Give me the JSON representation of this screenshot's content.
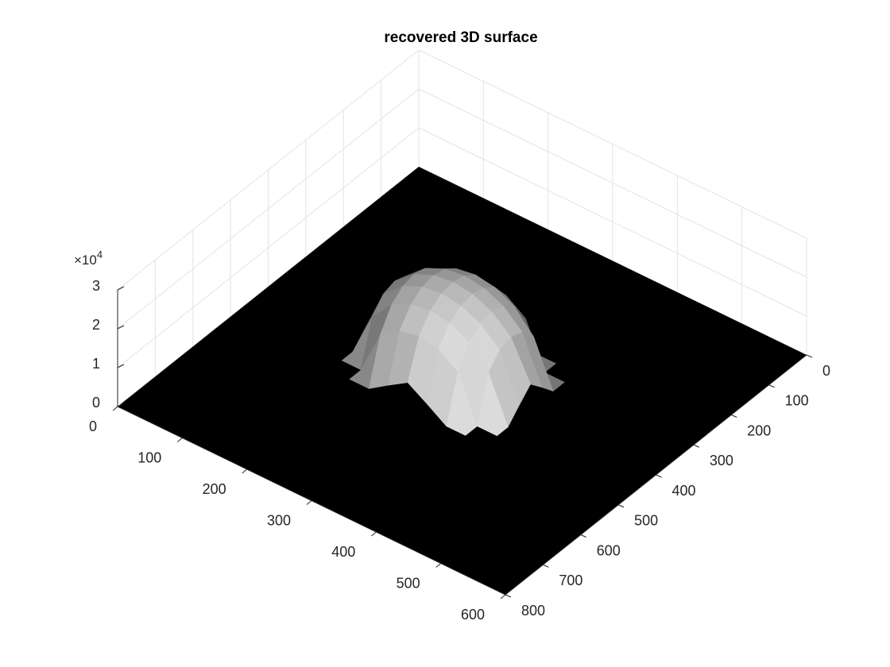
{
  "chart_data": {
    "type": "surface3d",
    "title": "recovered 3D surface",
    "xlim": [
      0,
      600
    ],
    "xticks": [
      0,
      100,
      200,
      300,
      400,
      500,
      600
    ],
    "ylim": [
      0,
      800
    ],
    "yticks": [
      0,
      100,
      200,
      300,
      400,
      500,
      600,
      700,
      800
    ],
    "zlim": [
      0,
      30000
    ],
    "zticks": [
      0,
      {
        "value": 10000,
        "label": "1"
      },
      {
        "value": 20000,
        "label": "2"
      },
      {
        "value": 30000,
        "label": "3"
      }
    ],
    "z_multiplier": {
      "base": "×10",
      "exponent": "4"
    },
    "grid": true,
    "floor_color": "#000000",
    "x": [
      160,
      190,
      220,
      250,
      280,
      310,
      340,
      370,
      400
    ],
    "y": [
      270,
      300,
      330,
      360,
      390,
      420,
      450,
      480,
      510
    ],
    "z": [
      [
        0,
        0,
        0,
        3300,
        6400,
        3300,
        0,
        0,
        0
      ],
      [
        0,
        0,
        11500,
        15000,
        16000,
        15000,
        11500,
        0,
        0
      ],
      [
        0,
        11500,
        16900,
        19400,
        20200,
        19400,
        16900,
        11500,
        0
      ],
      [
        3300,
        15000,
        19400,
        21600,
        22300,
        21600,
        19400,
        15000,
        3300
      ],
      [
        6400,
        16000,
        20200,
        22300,
        23000,
        22300,
        20200,
        16000,
        6400
      ],
      [
        3300,
        15000,
        19400,
        21600,
        22300,
        21600,
        19400,
        15000,
        3300
      ],
      [
        0,
        11500,
        16900,
        19400,
        20200,
        19400,
        16900,
        11500,
        0
      ],
      [
        0,
        0,
        11500,
        15000,
        16000,
        15000,
        11500,
        0,
        0
      ],
      [
        0,
        0,
        0,
        3300,
        6400,
        3300,
        0,
        0,
        0
      ]
    ]
  }
}
